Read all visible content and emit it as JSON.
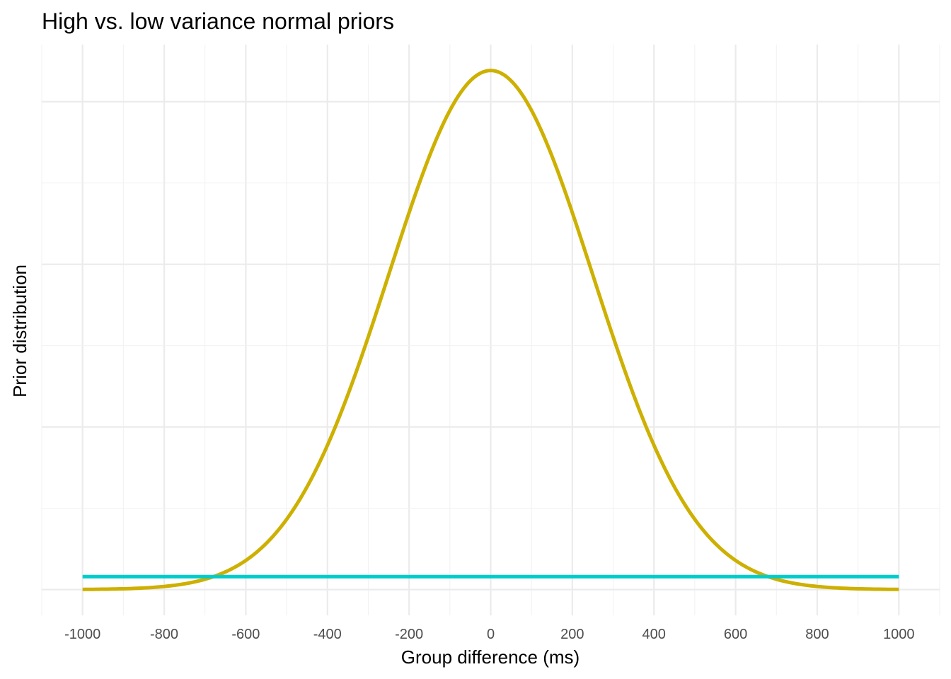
{
  "chart_data": {
    "type": "line",
    "title": "High vs. low variance normal priors",
    "xlabel": "Group difference (ms)",
    "ylabel": "Prior distribution",
    "xlim": [
      -1100,
      1100
    ],
    "x_ticks": [
      -1000,
      -800,
      -600,
      -400,
      -200,
      0,
      200,
      400,
      600,
      800,
      1000
    ],
    "x_tick_labels": [
      "-1000",
      "-800",
      "-600",
      "-400",
      "-200",
      "0",
      "200",
      "400",
      "600",
      "800",
      "1000"
    ],
    "y_tick_labels_shown": false,
    "grid": true,
    "legend": "none",
    "series": [
      {
        "distribution": "normal",
        "mean": 0,
        "sd": 250,
        "x_range": [
          -1000,
          1000
        ],
        "color": "#cdb000"
      },
      {
        "distribution": "normal",
        "mean": 0,
        "sd": 10000,
        "x_range": [
          -1000,
          1000
        ],
        "color": "#00cccc"
      }
    ]
  }
}
